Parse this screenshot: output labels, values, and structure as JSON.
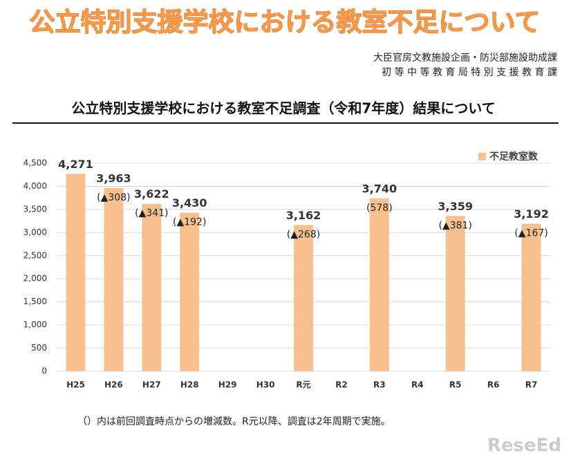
{
  "header": {
    "title": "公立特別支援学校における教室不足について",
    "org_lines": [
      "大臣官房文教施設企画・防災部施設助成課",
      "初 等 中 等 教 育 局 特 別 支 援 教 育 課"
    ]
  },
  "chart_data": {
    "type": "bar",
    "title": "公立特別支援学校における教室不足調査（令和7年度）結果について",
    "categories": [
      "H25",
      "H26",
      "H27",
      "H28",
      "H29",
      "H30",
      "R元",
      "R2",
      "R3",
      "R4",
      "R5",
      "R6",
      "R7"
    ],
    "series": [
      {
        "name": "不足教室数",
        "color": "#f7c08e",
        "values": [
          4271,
          3963,
          3622,
          3430,
          null,
          null,
          3162,
          null,
          3740,
          null,
          3359,
          null,
          3192
        ],
        "value_labels": [
          "4,271",
          "3,963",
          "3,622",
          "3,430",
          null,
          null,
          "3,162",
          null,
          "3,740",
          null,
          "3,359",
          null,
          "3,192"
        ]
      }
    ],
    "change_labels": [
      null,
      "(▲308)",
      "(▲341)",
      "(▲192)",
      null,
      null,
      "(▲268)",
      null,
      "(578)",
      null,
      "(▲381)",
      null,
      "(▲167)"
    ],
    "ylim": [
      0,
      4500
    ],
    "yticks": [
      0,
      500,
      {
        "value": 1000,
        "label": "1,000"
      },
      {
        "value": 1500,
        "label": "1,500"
      },
      {
        "value": 2000,
        "label": "2,000"
      },
      {
        "value": 2500,
        "label": "2,500"
      },
      {
        "value": 3000,
        "label": "3,000"
      },
      {
        "value": 3500,
        "label": "3,500"
      },
      {
        "value": 4000,
        "label": "4,000"
      },
      {
        "value": 4500,
        "label": "4,500"
      }
    ],
    "grid": true,
    "legend": "top-right"
  },
  "footnote": "（）内は前回調査時点からの増減数。R元以降、調査は2年周期で実施。",
  "watermark": "ReseEd"
}
